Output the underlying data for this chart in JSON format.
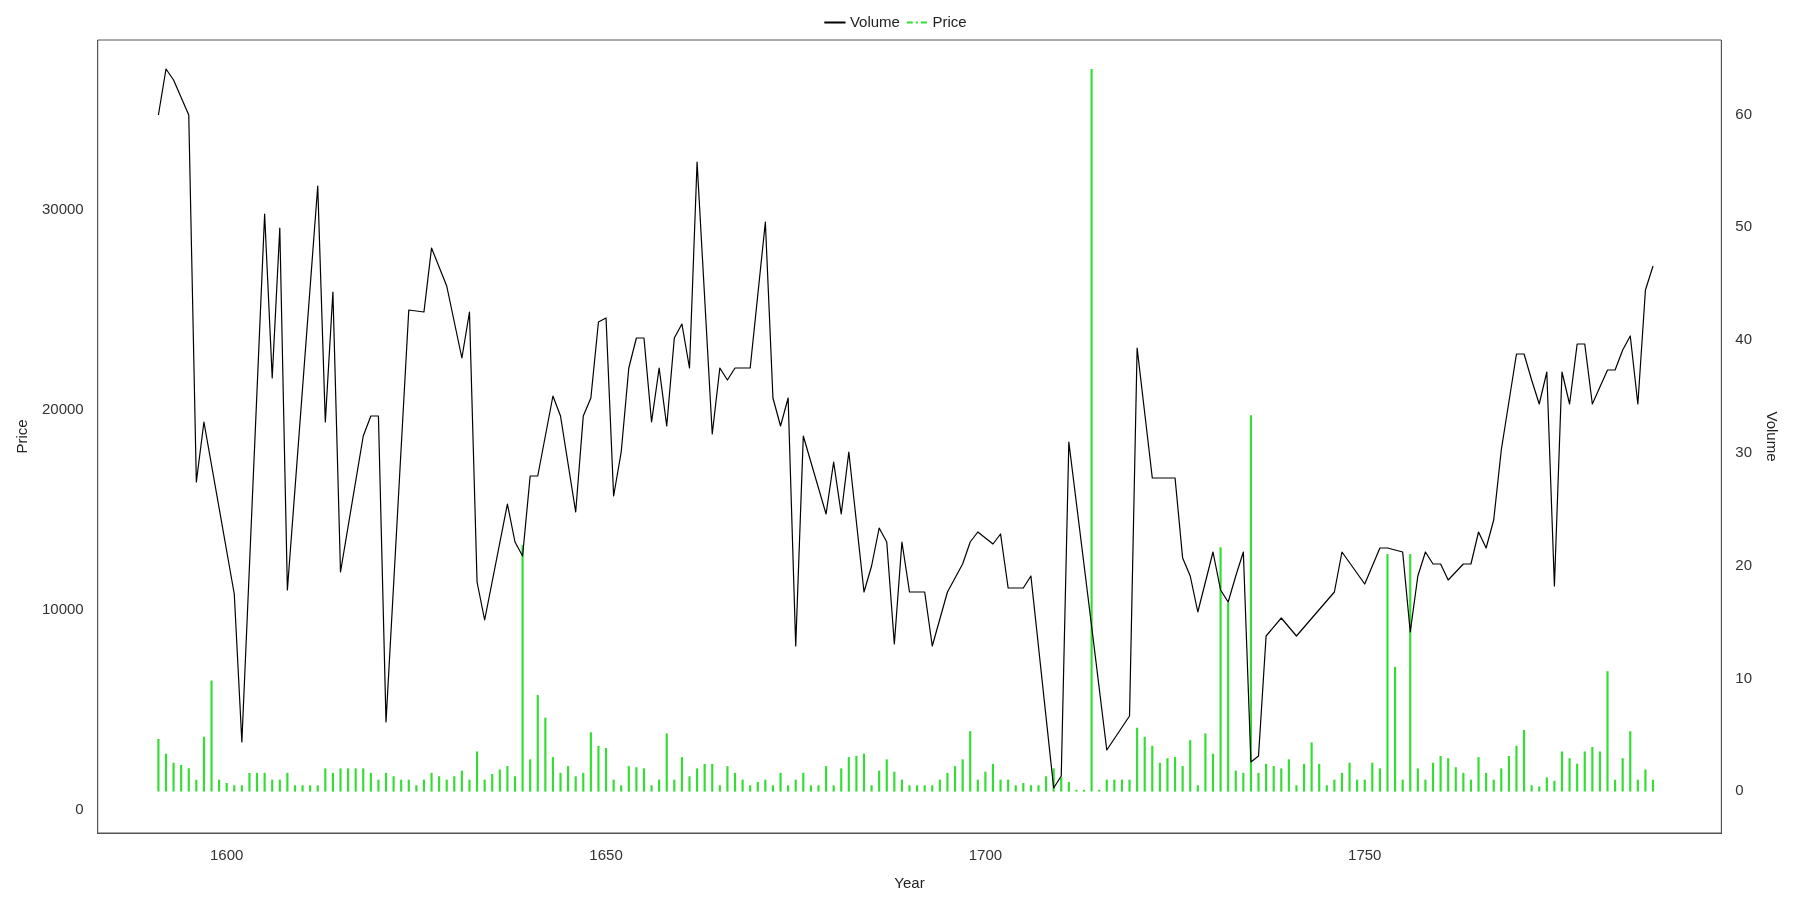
{
  "chart_data": {
    "type": "line",
    "xlabel": "Year",
    "ylabel": "Price",
    "y2label": "Volume",
    "legend": "top",
    "xlim": [
      1583,
      1797
    ],
    "xticks": [
      1600,
      1650,
      1700,
      1750
    ],
    "ylim": [
      -1150,
      38500
    ],
    "yticks": [
      0,
      10000,
      20000,
      30000
    ],
    "y2lim": [
      -3.7,
      66.6
    ],
    "y2ticks": [
      0,
      10,
      20,
      30,
      40,
      50,
      60
    ],
    "series": [
      {
        "name": "Volume",
        "color": "#000000",
        "x": [
          1591,
          1592,
          1593,
          1595,
          1596,
          1597,
          1601,
          1602,
          1605,
          1606,
          1607,
          1608,
          1612,
          1613,
          1614,
          1615,
          1618,
          1619,
          1620,
          1621,
          1624,
          1626,
          1627,
          1629,
          1631,
          1632,
          1633,
          1634,
          1637,
          1638,
          1639,
          1640,
          1641,
          1643,
          1644,
          1646,
          1647,
          1648,
          1649,
          1650,
          1651,
          1652,
          1653,
          1654,
          1655,
          1656,
          1657,
          1658,
          1659,
          1660,
          1661,
          1662,
          1664,
          1665,
          1666,
          1667,
          1669,
          1671,
          1672,
          1673,
          1674,
          1675,
          1676,
          1679,
          1680,
          1681,
          1682,
          1684,
          1685,
          1686,
          1687,
          1688,
          1689,
          1690,
          1692,
          1693,
          1695,
          1696,
          1697,
          1698,
          1699,
          1701,
          1702,
          1703,
          1705,
          1706,
          1709,
          1710,
          1711,
          1714,
          1716,
          1719,
          1720,
          1722,
          1725,
          1726,
          1727,
          1728,
          1730,
          1731,
          1732,
          1733,
          1734,
          1735,
          1736,
          1737,
          1739,
          1741,
          1746,
          1747,
          1750,
          1752,
          1753,
          1755,
          1756,
          1757,
          1758,
          1759,
          1760,
          1761,
          1763,
          1764,
          1765,
          1766,
          1767,
          1768,
          1770,
          1771,
          1772,
          1773,
          1774,
          1775,
          1776,
          1777,
          1778,
          1779,
          1780,
          1782,
          1783,
          1784,
          1785,
          1786,
          1787,
          1788
        ],
        "values": [
          34750,
          37050,
          36500,
          34750,
          16400,
          19400,
          10800,
          3400,
          29800,
          21600,
          29100,
          11000,
          31200,
          19400,
          25900,
          11900,
          18700,
          19700,
          19700,
          4400,
          25000,
          24900,
          28100,
          26200,
          22600,
          24900,
          11400,
          9500,
          15300,
          13400,
          12700,
          16700,
          16700,
          20700,
          19700,
          14900,
          19700,
          20600,
          24400,
          24600,
          15700,
          17900,
          22100,
          23600,
          23600,
          19400,
          22100,
          19200,
          23600,
          24300,
          22100,
          32400,
          18800,
          22100,
          21500,
          22100,
          22100,
          29400,
          20600,
          19200,
          20600,
          8200,
          18700,
          14800,
          17400,
          14800,
          17900,
          10900,
          12200,
          14100,
          13400,
          8300,
          13400,
          10900,
          10900,
          8200,
          10900,
          11600,
          12300,
          13400,
          13900,
          13300,
          13800,
          11100,
          11100,
          11700,
          1100,
          1700,
          18400,
          9200,
          3000,
          4700,
          23100,
          16600,
          16600,
          12600,
          11700,
          9900,
          12900,
          11000,
          10400,
          11700,
          12900,
          2400,
          2700,
          8700,
          9600,
          8700,
          10900,
          12900,
          11300,
          13100,
          13100,
          12900,
          8900,
          11700,
          12900,
          12300,
          12300,
          11500,
          12300,
          12300,
          13900,
          13100,
          14500,
          18000,
          22800,
          22800,
          21500,
          20300,
          21900,
          11200,
          21900,
          20300,
          23300,
          23300,
          20300,
          22000,
          22000,
          23000,
          23700,
          20300,
          26000,
          27200
        ]
      },
      {
        "name": "Price",
        "type": "bar",
        "axis": "y2",
        "color": "#33dd33",
        "x": [
          1591,
          1592,
          1593,
          1594,
          1595,
          1596,
          1597,
          1598,
          1599,
          1600,
          1601,
          1602,
          1603,
          1604,
          1605,
          1606,
          1607,
          1608,
          1609,
          1610,
          1611,
          1612,
          1613,
          1614,
          1615,
          1616,
          1617,
          1618,
          1619,
          1620,
          1621,
          1622,
          1623,
          1624,
          1625,
          1626,
          1627,
          1628,
          1629,
          1630,
          1631,
          1632,
          1633,
          1634,
          1635,
          1636,
          1637,
          1638,
          1639,
          1640,
          1641,
          1642,
          1643,
          1644,
          1645,
          1646,
          1647,
          1648,
          1649,
          1650,
          1651,
          1652,
          1653,
          1654,
          1655,
          1656,
          1657,
          1658,
          1659,
          1660,
          1661,
          1662,
          1663,
          1664,
          1665,
          1666,
          1667,
          1668,
          1669,
          1670,
          1671,
          1672,
          1673,
          1674,
          1675,
          1676,
          1677,
          1678,
          1679,
          1680,
          1681,
          1682,
          1683,
          1684,
          1685,
          1686,
          1687,
          1688,
          1689,
          1690,
          1691,
          1692,
          1693,
          1694,
          1695,
          1696,
          1697,
          1698,
          1699,
          1700,
          1701,
          1702,
          1703,
          1704,
          1705,
          1706,
          1707,
          1708,
          1709,
          1710,
          1711,
          1712,
          1713,
          1714,
          1715,
          1716,
          1717,
          1718,
          1719,
          1720,
          1721,
          1722,
          1723,
          1724,
          1725,
          1726,
          1727,
          1728,
          1729,
          1730,
          1731,
          1732,
          1733,
          1734,
          1735,
          1736,
          1737,
          1738,
          1739,
          1740,
          1741,
          1742,
          1743,
          1744,
          1745,
          1746,
          1747,
          1748,
          1749,
          1750,
          1751,
          1752,
          1753,
          1754,
          1755,
          1756,
          1757,
          1758,
          1759,
          1760,
          1761,
          1762,
          1763,
          1764,
          1765,
          1766,
          1767,
          1768,
          1769,
          1770,
          1771,
          1772,
          1773,
          1774,
          1775,
          1776,
          1777,
          1778,
          1779,
          1780,
          1781,
          1782,
          1783,
          1784,
          1785,
          1786,
          1787,
          1788
        ],
        "values": [
          4.6,
          3.3,
          2.5,
          2.3,
          2.0,
          1.0,
          4.8,
          9.8,
          1.0,
          0.7,
          0.5,
          0.5,
          1.6,
          1.6,
          1.6,
          1.0,
          1.0,
          1.6,
          0.5,
          0.5,
          0.5,
          0.5,
          2.0,
          1.6,
          2.0,
          2.0,
          2.0,
          2.0,
          1.6,
          1.0,
          1.6,
          1.3,
          1.0,
          1.0,
          0.5,
          1.0,
          1.6,
          1.3,
          1.0,
          1.3,
          1.8,
          1.0,
          3.5,
          1.0,
          1.5,
          1.9,
          2.2,
          1.3,
          21.8,
          2.8,
          8.5,
          6.5,
          3.0,
          1.6,
          2.2,
          1.3,
          1.6,
          5.2,
          4.0,
          3.8,
          1.0,
          0.5,
          2.2,
          2.1,
          2.0,
          0.5,
          1.0,
          5.1,
          1.0,
          3.0,
          1.3,
          2.0,
          2.4,
          2.4,
          0.5,
          2.2,
          1.6,
          1.0,
          0.5,
          0.8,
          1.0,
          0.5,
          1.6,
          0.5,
          1.0,
          1.6,
          0.5,
          0.5,
          2.2,
          0.5,
          2.0,
          3.0,
          3.1,
          3.3,
          0.5,
          1.8,
          2.8,
          1.7,
          1.0,
          0.5,
          0.5,
          0.5,
          0.5,
          1.0,
          1.6,
          2.2,
          2.8,
          5.3,
          1.0,
          1.7,
          2.4,
          1.0,
          1.0,
          0.5,
          0.7,
          0.5,
          0.5,
          1.3,
          2.0,
          1.2,
          0.8,
          0.1,
          0.1,
          64,
          0.1,
          1.0,
          1.0,
          1.0,
          1.0,
          5.6,
          4.8,
          4.0,
          2.5,
          2.9,
          3.0,
          2.2,
          4.5,
          0.5,
          5.1,
          3.3,
          21.6,
          16.7,
          1.8,
          1.6,
          33.3,
          1.6,
          2.4,
          2.2,
          2.0,
          2.8,
          0.5,
          2.4,
          4.3,
          2.4,
          0.5,
          1.0,
          1.6,
          2.5,
          1.0,
          1.0,
          2.5,
          2.0,
          21.0,
          11.0,
          1.0,
          21.0,
          2.0,
          1.0,
          2.5,
          3.1,
          2.9,
          2.1,
          1.6,
          1.0,
          3.0,
          1.6,
          1.0,
          2.0,
          3.1,
          4.0,
          5.4,
          0.5,
          0.4,
          1.2,
          0.9,
          3.5,
          2.9,
          2.4,
          3.5,
          3.9,
          3.5,
          10.6,
          1.0,
          2.9,
          5.3,
          1.0,
          1.9,
          1.0
        ]
      }
    ]
  }
}
